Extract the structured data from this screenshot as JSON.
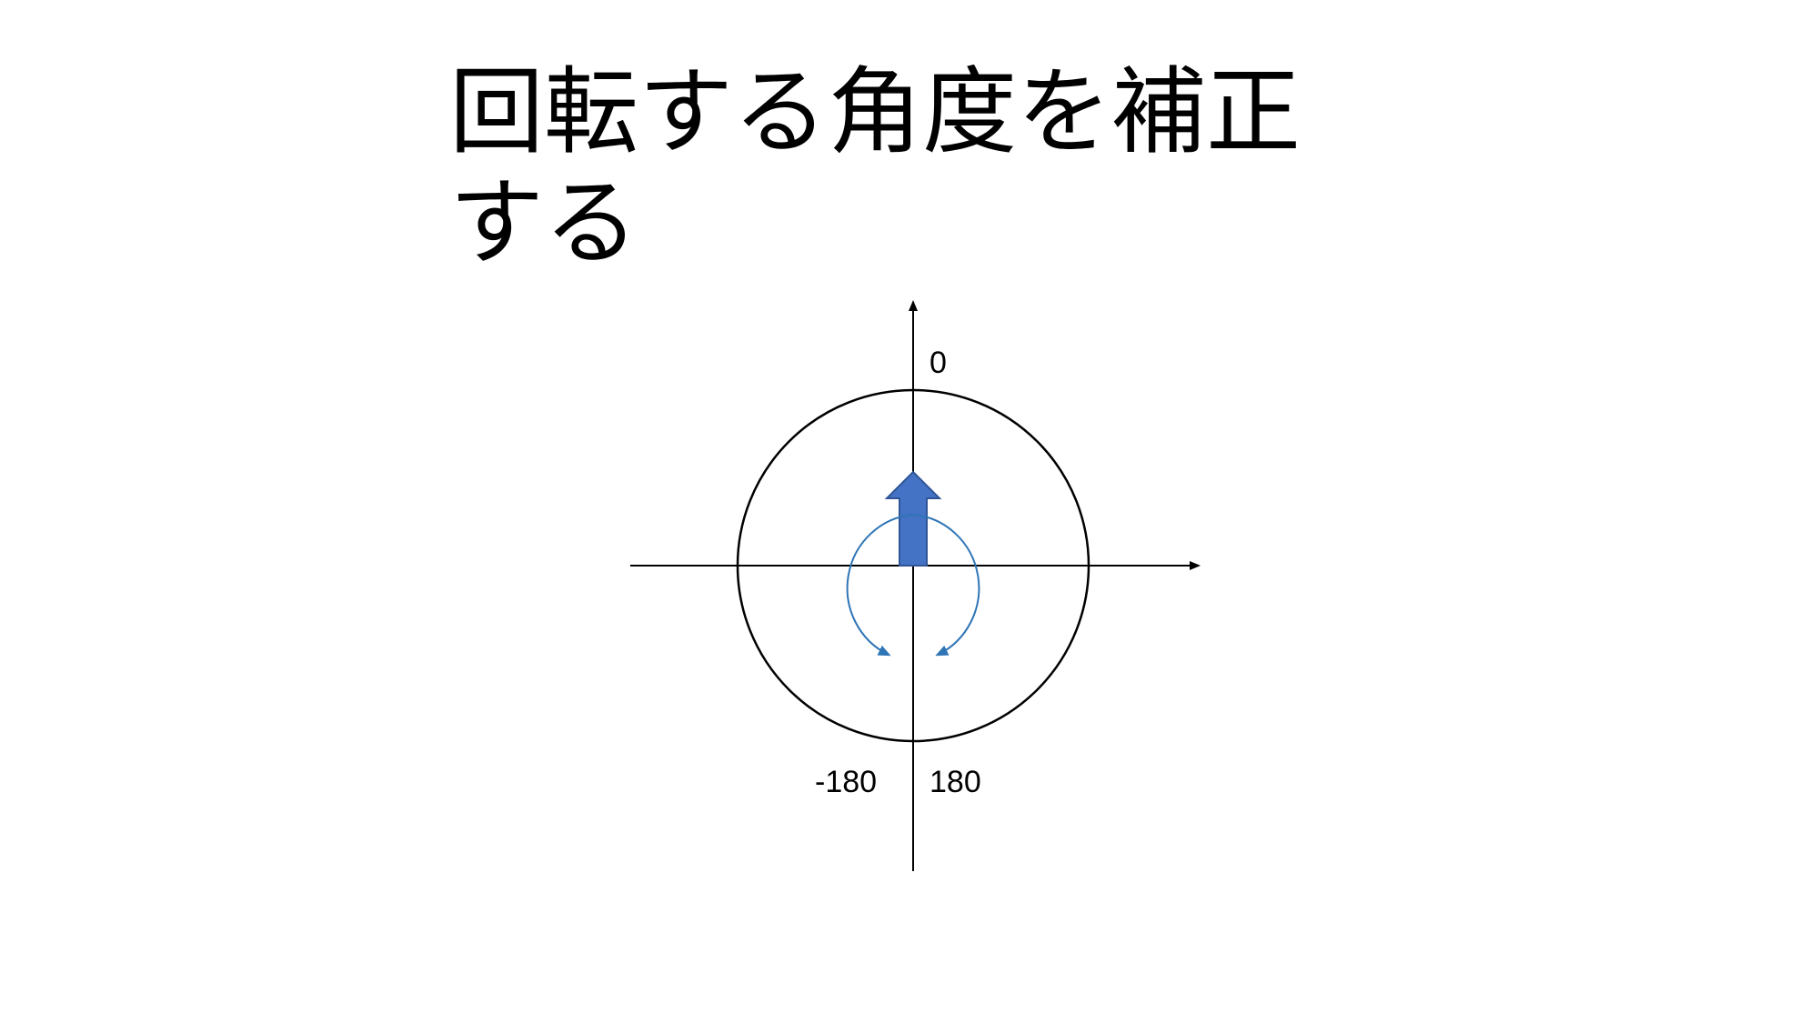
{
  "slide": {
    "title": "回転する角度を補正する"
  },
  "diagram": {
    "labels": {
      "top": "0",
      "bottom_left": "-180",
      "bottom_right": "180"
    },
    "colors": {
      "axis": "#000000",
      "circle": "#000000",
      "heading_arrow_fill": "#4472C4",
      "heading_arrow_stroke": "#2F5597",
      "rotation_arc": "#2E75B6"
    },
    "icons": [
      "heading-arrow-icon",
      "clockwise-rotation-arrow-icon",
      "counterclockwise-rotation-arrow-icon"
    ]
  }
}
